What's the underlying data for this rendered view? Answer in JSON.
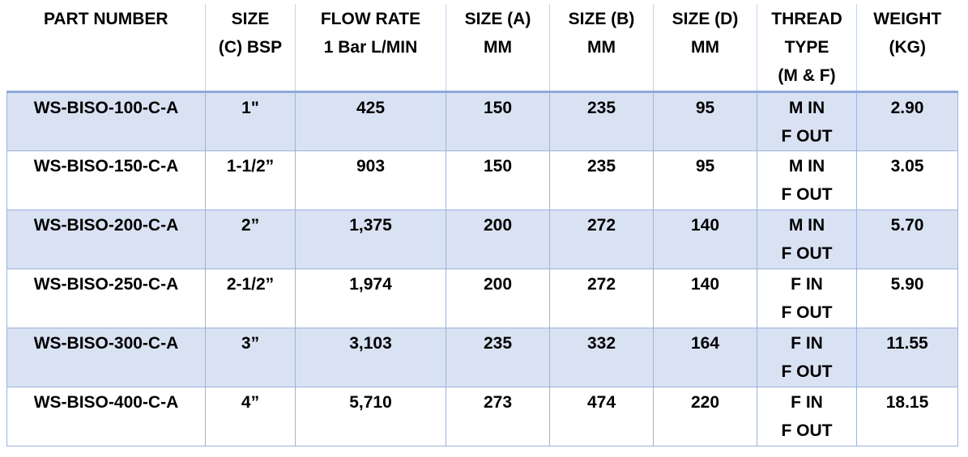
{
  "table": {
    "header": [
      [
        "PART NUMBER"
      ],
      [
        "SIZE",
        "(C) BSP"
      ],
      [
        "FLOW RATE",
        "1 Bar L/MIN"
      ],
      [
        "SIZE (A)",
        "MM"
      ],
      [
        "SIZE (B)",
        "MM"
      ],
      [
        "SIZE (D)",
        "MM"
      ],
      [
        "THREAD",
        "TYPE",
        "(M & F)"
      ],
      [
        "WEIGHT",
        "(KG)"
      ]
    ],
    "rows": [
      [
        [
          "WS-BISO-100-C-A"
        ],
        [
          "1\""
        ],
        [
          "425"
        ],
        [
          "150"
        ],
        [
          "235"
        ],
        [
          "95"
        ],
        [
          "M IN",
          "F OUT"
        ],
        [
          "2.90"
        ]
      ],
      [
        [
          "WS-BISO-150-C-A"
        ],
        [
          "1-1/2”"
        ],
        [
          "903"
        ],
        [
          "150"
        ],
        [
          "235"
        ],
        [
          "95"
        ],
        [
          "M IN",
          "F OUT"
        ],
        [
          "3.05"
        ]
      ],
      [
        [
          "WS-BISO-200-C-A"
        ],
        [
          "2”"
        ],
        [
          "1,375"
        ],
        [
          "200"
        ],
        [
          "272"
        ],
        [
          "140"
        ],
        [
          "M IN",
          "F OUT"
        ],
        [
          "5.70"
        ]
      ],
      [
        [
          "WS-BISO-250-C-A"
        ],
        [
          "2-1/2”"
        ],
        [
          "1,974"
        ],
        [
          "200"
        ],
        [
          "272"
        ],
        [
          "140"
        ],
        [
          "F IN",
          "F OUT"
        ],
        [
          "5.90"
        ]
      ],
      [
        [
          "WS-BISO-300-C-A"
        ],
        [
          "3”"
        ],
        [
          "3,103"
        ],
        [
          "235"
        ],
        [
          "332"
        ],
        [
          "164"
        ],
        [
          "F IN",
          "F OUT"
        ],
        [
          "11.55"
        ]
      ],
      [
        [
          "WS-BISO-400-C-A"
        ],
        [
          "4”"
        ],
        [
          "5,710"
        ],
        [
          "273"
        ],
        [
          "474"
        ],
        [
          "220"
        ],
        [
          "F IN",
          "F OUT"
        ],
        [
          "18.15"
        ]
      ]
    ]
  }
}
